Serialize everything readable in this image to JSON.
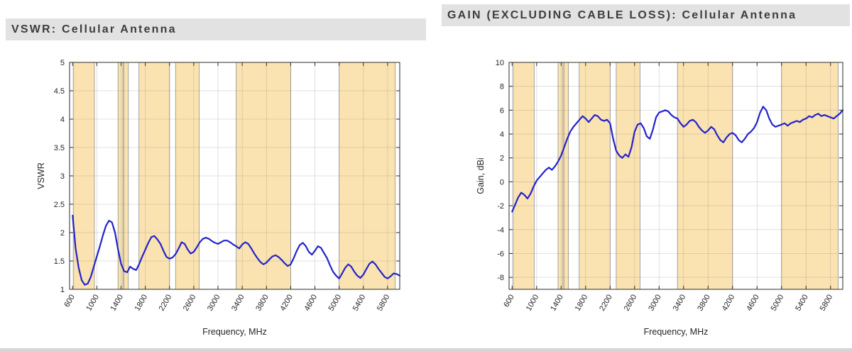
{
  "colors": {
    "title_bg": "#e2e2e2",
    "title_text": "#3d3d3d",
    "line": "#2323cb",
    "band_fill": "#fae3b0",
    "band_edge": "#8f8f8f",
    "axis": "#2b2b2b",
    "grid": "rgba(120,120,120,0.28)",
    "tick_text": "#262626"
  },
  "chart_data": [
    {
      "type": "line",
      "title": "VSWR: Cellular Antenna",
      "xlabel": "Frequency, MHz",
      "ylabel": "VSWR",
      "xlim": [
        550,
        6000
      ],
      "ylim": [
        1,
        5
      ],
      "xticks": [
        600,
        1000,
        1400,
        1800,
        2200,
        2600,
        3000,
        3400,
        3800,
        4200,
        4600,
        5000,
        5400,
        5800
      ],
      "yticks": [
        1,
        1.5,
        2,
        2.5,
        3,
        3.5,
        4,
        4.5,
        5
      ],
      "grid": true,
      "legend": "none",
      "bands": [
        [
          617,
          960
        ],
        [
          1350,
          1430
        ],
        [
          1445,
          1520
        ],
        [
          1695,
          2200
        ],
        [
          2300,
          2690
        ],
        [
          3300,
          4200
        ],
        [
          5000,
          5925
        ]
      ],
      "points": [
        [
          600,
          2.3
        ],
        [
          650,
          1.72
        ],
        [
          700,
          1.38
        ],
        [
          750,
          1.16
        ],
        [
          800,
          1.08
        ],
        [
          850,
          1.1
        ],
        [
          900,
          1.22
        ],
        [
          950,
          1.4
        ],
        [
          1000,
          1.58
        ],
        [
          1050,
          1.76
        ],
        [
          1100,
          1.95
        ],
        [
          1150,
          2.12
        ],
        [
          1200,
          2.21
        ],
        [
          1250,
          2.18
        ],
        [
          1300,
          2.0
        ],
        [
          1350,
          1.7
        ],
        [
          1400,
          1.45
        ],
        [
          1450,
          1.32
        ],
        [
          1500,
          1.3
        ],
        [
          1550,
          1.4
        ],
        [
          1600,
          1.36
        ],
        [
          1650,
          1.34
        ],
        [
          1700,
          1.45
        ],
        [
          1750,
          1.58
        ],
        [
          1800,
          1.7
        ],
        [
          1850,
          1.82
        ],
        [
          1900,
          1.92
        ],
        [
          1950,
          1.94
        ],
        [
          2000,
          1.88
        ],
        [
          2050,
          1.8
        ],
        [
          2100,
          1.68
        ],
        [
          2150,
          1.57
        ],
        [
          2200,
          1.54
        ],
        [
          2250,
          1.56
        ],
        [
          2300,
          1.62
        ],
        [
          2350,
          1.72
        ],
        [
          2400,
          1.83
        ],
        [
          2450,
          1.8
        ],
        [
          2500,
          1.7
        ],
        [
          2550,
          1.63
        ],
        [
          2600,
          1.66
        ],
        [
          2650,
          1.74
        ],
        [
          2700,
          1.83
        ],
        [
          2750,
          1.89
        ],
        [
          2800,
          1.91
        ],
        [
          2850,
          1.89
        ],
        [
          2900,
          1.85
        ],
        [
          2950,
          1.82
        ],
        [
          3000,
          1.8
        ],
        [
          3050,
          1.83
        ],
        [
          3100,
          1.86
        ],
        [
          3150,
          1.86
        ],
        [
          3200,
          1.83
        ],
        [
          3250,
          1.79
        ],
        [
          3300,
          1.76
        ],
        [
          3350,
          1.72
        ],
        [
          3400,
          1.79
        ],
        [
          3450,
          1.83
        ],
        [
          3500,
          1.8
        ],
        [
          3550,
          1.72
        ],
        [
          3600,
          1.63
        ],
        [
          3650,
          1.55
        ],
        [
          3700,
          1.48
        ],
        [
          3750,
          1.44
        ],
        [
          3800,
          1.47
        ],
        [
          3850,
          1.53
        ],
        [
          3900,
          1.58
        ],
        [
          3950,
          1.6
        ],
        [
          4000,
          1.57
        ],
        [
          4050,
          1.52
        ],
        [
          4100,
          1.46
        ],
        [
          4150,
          1.41
        ],
        [
          4200,
          1.44
        ],
        [
          4250,
          1.55
        ],
        [
          4300,
          1.68
        ],
        [
          4350,
          1.78
        ],
        [
          4400,
          1.82
        ],
        [
          4450,
          1.76
        ],
        [
          4500,
          1.66
        ],
        [
          4550,
          1.61
        ],
        [
          4600,
          1.68
        ],
        [
          4650,
          1.76
        ],
        [
          4700,
          1.73
        ],
        [
          4750,
          1.64
        ],
        [
          4800,
          1.55
        ],
        [
          4850,
          1.42
        ],
        [
          4900,
          1.31
        ],
        [
          4950,
          1.24
        ],
        [
          5000,
          1.19
        ],
        [
          5050,
          1.28
        ],
        [
          5100,
          1.38
        ],
        [
          5150,
          1.44
        ],
        [
          5200,
          1.4
        ],
        [
          5250,
          1.31
        ],
        [
          5300,
          1.24
        ],
        [
          5350,
          1.2
        ],
        [
          5400,
          1.26
        ],
        [
          5450,
          1.36
        ],
        [
          5500,
          1.45
        ],
        [
          5550,
          1.49
        ],
        [
          5600,
          1.44
        ],
        [
          5650,
          1.36
        ],
        [
          5700,
          1.29
        ],
        [
          5750,
          1.22
        ],
        [
          5800,
          1.19
        ],
        [
          5850,
          1.23
        ],
        [
          5900,
          1.28
        ],
        [
          5950,
          1.27
        ],
        [
          6000,
          1.24
        ]
      ]
    },
    {
      "type": "line",
      "title": "GAIN (EXCLUDING CABLE LOSS): Cellular Antenna",
      "xlabel": "Frequency, MHz",
      "ylabel": "Gain, dBi",
      "xlim": [
        550,
        6000
      ],
      "ylim": [
        -9,
        10
      ],
      "xticks": [
        600,
        1000,
        1400,
        1800,
        2200,
        2600,
        3000,
        3400,
        3800,
        4200,
        4600,
        5000,
        5400,
        5800
      ],
      "yticks": [
        -8,
        -6,
        -4,
        -2,
        0,
        2,
        4,
        6,
        8,
        10
      ],
      "grid": true,
      "legend": "none",
      "bands": [
        [
          617,
          960
        ],
        [
          1350,
          1430
        ],
        [
          1445,
          1520
        ],
        [
          1695,
          2200
        ],
        [
          2300,
          2690
        ],
        [
          3300,
          4200
        ],
        [
          5000,
          5925
        ]
      ],
      "points": [
        [
          600,
          -2.5
        ],
        [
          650,
          -1.9
        ],
        [
          700,
          -1.3
        ],
        [
          750,
          -0.9
        ],
        [
          800,
          -1.1
        ],
        [
          850,
          -1.4
        ],
        [
          900,
          -1.0
        ],
        [
          950,
          -0.4
        ],
        [
          1000,
          0.1
        ],
        [
          1050,
          0.4
        ],
        [
          1100,
          0.7
        ],
        [
          1150,
          1.0
        ],
        [
          1200,
          1.2
        ],
        [
          1250,
          1.0
        ],
        [
          1300,
          1.3
        ],
        [
          1350,
          1.7
        ],
        [
          1400,
          2.2
        ],
        [
          1450,
          2.9
        ],
        [
          1500,
          3.6
        ],
        [
          1550,
          4.2
        ],
        [
          1600,
          4.6
        ],
        [
          1650,
          4.9
        ],
        [
          1700,
          5.2
        ],
        [
          1750,
          5.5
        ],
        [
          1800,
          5.3
        ],
        [
          1850,
          5.0
        ],
        [
          1900,
          5.3
        ],
        [
          1950,
          5.6
        ],
        [
          2000,
          5.5
        ],
        [
          2050,
          5.2
        ],
        [
          2100,
          5.1
        ],
        [
          2150,
          5.2
        ],
        [
          2200,
          4.9
        ],
        [
          2250,
          3.6
        ],
        [
          2300,
          2.6
        ],
        [
          2350,
          2.2
        ],
        [
          2400,
          2.0
        ],
        [
          2450,
          2.3
        ],
        [
          2500,
          2.1
        ],
        [
          2550,
          2.9
        ],
        [
          2600,
          4.2
        ],
        [
          2650,
          4.8
        ],
        [
          2700,
          4.9
        ],
        [
          2750,
          4.5
        ],
        [
          2800,
          3.8
        ],
        [
          2850,
          3.6
        ],
        [
          2900,
          4.4
        ],
        [
          2950,
          5.4
        ],
        [
          3000,
          5.8
        ],
        [
          3050,
          5.9
        ],
        [
          3100,
          6.0
        ],
        [
          3150,
          5.9
        ],
        [
          3200,
          5.6
        ],
        [
          3250,
          5.4
        ],
        [
          3300,
          5.3
        ],
        [
          3350,
          4.9
        ],
        [
          3400,
          4.6
        ],
        [
          3450,
          4.8
        ],
        [
          3500,
          5.1
        ],
        [
          3550,
          5.2
        ],
        [
          3600,
          5.0
        ],
        [
          3650,
          4.6
        ],
        [
          3700,
          4.3
        ],
        [
          3750,
          4.1
        ],
        [
          3800,
          4.3
        ],
        [
          3850,
          4.6
        ],
        [
          3900,
          4.4
        ],
        [
          3950,
          3.9
        ],
        [
          4000,
          3.5
        ],
        [
          4050,
          3.3
        ],
        [
          4100,
          3.7
        ],
        [
          4150,
          4.0
        ],
        [
          4200,
          4.1
        ],
        [
          4250,
          3.9
        ],
        [
          4300,
          3.5
        ],
        [
          4350,
          3.3
        ],
        [
          4400,
          3.6
        ],
        [
          4450,
          4.0
        ],
        [
          4500,
          4.2
        ],
        [
          4550,
          4.5
        ],
        [
          4600,
          5.0
        ],
        [
          4650,
          5.8
        ],
        [
          4700,
          6.3
        ],
        [
          4750,
          6.0
        ],
        [
          4800,
          5.3
        ],
        [
          4850,
          4.8
        ],
        [
          4900,
          4.6
        ],
        [
          4950,
          4.7
        ],
        [
          5000,
          4.8
        ],
        [
          5050,
          4.9
        ],
        [
          5100,
          4.7
        ],
        [
          5150,
          4.9
        ],
        [
          5200,
          5.0
        ],
        [
          5250,
          5.1
        ],
        [
          5300,
          5.0
        ],
        [
          5350,
          5.2
        ],
        [
          5400,
          5.3
        ],
        [
          5450,
          5.5
        ],
        [
          5500,
          5.4
        ],
        [
          5550,
          5.6
        ],
        [
          5600,
          5.7
        ],
        [
          5650,
          5.5
        ],
        [
          5700,
          5.6
        ],
        [
          5750,
          5.5
        ],
        [
          5800,
          5.4
        ],
        [
          5850,
          5.3
        ],
        [
          5900,
          5.5
        ],
        [
          5950,
          5.7
        ],
        [
          6000,
          6.0
        ]
      ]
    }
  ]
}
